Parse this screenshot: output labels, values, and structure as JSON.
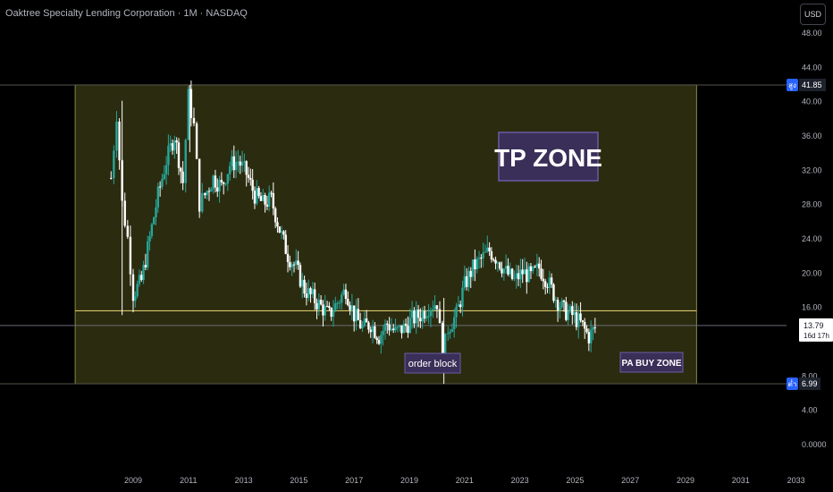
{
  "header": {
    "title": "Oaktree Specialty Lending Corporation · 1M · NASDAQ"
  },
  "currency_button": "USD",
  "price_axis": {
    "ticks": [
      "48.00",
      "44.00",
      "40.00",
      "36.00",
      "32.00",
      "28.00",
      "24.00",
      "20.00",
      "16.00",
      "12.00",
      "8.00",
      "4.00",
      "0.0000"
    ],
    "tick_values": [
      48,
      44,
      40,
      36,
      32,
      28,
      24,
      20,
      16,
      12,
      8,
      4,
      0
    ],
    "high_tag": {
      "prefix": "สูง",
      "value": "41.85"
    },
    "low_tag": {
      "prefix": "ต่ำ",
      "value": "6.99"
    },
    "last_price": "13.79",
    "countdown": "16d 17h"
  },
  "time_axis": {
    "years": [
      "2009",
      "2011",
      "2013",
      "2015",
      "2017",
      "2019",
      "2021",
      "2023",
      "2025",
      "2027",
      "2029",
      "2031",
      "2033"
    ]
  },
  "annotations": {
    "tp_zone": "TP ZONE",
    "order_block": "order block",
    "buy_zone": "PA BUY ZONE"
  },
  "colors": {
    "background": "#000000",
    "zone_fill": "#2b2b0f",
    "zone_border": "#8a8a46",
    "level_line": "#d8c46a",
    "label_bg": "#3a2f58",
    "label_border": "#6b5ba6",
    "candle_up": "#26a69a",
    "candle_down": "#ffffff",
    "axis_text": "#b2b5be"
  },
  "chart_data": {
    "type": "candlestick",
    "title": "Oaktree Specialty Lending Corporation · 1M · NASDAQ",
    "price_range": [
      0,
      50
    ],
    "x_range": [
      2007.6,
      2033.0
    ],
    "zone": {
      "from": 2006.9,
      "to": 2029.4,
      "low": 6.99,
      "high": 41.85
    },
    "level_line": 15.5,
    "last_price": 13.79,
    "closes_by_year": {
      "x": [
        2008.2,
        2008.4,
        2008.6,
        2008.8,
        2009.0,
        2009.3,
        2009.6,
        2009.9,
        2010.2,
        2010.5,
        2010.8,
        2011.0,
        2011.2,
        2011.4,
        2011.6,
        2011.9,
        2012.2,
        2012.5,
        2012.8,
        2013.1,
        2013.4,
        2013.7,
        2014.0,
        2014.3,
        2014.6,
        2014.9,
        2015.2,
        2015.5,
        2015.8,
        2016.1,
        2016.4,
        2016.7,
        2017.0,
        2017.3,
        2017.6,
        2017.9,
        2018.2,
        2018.5,
        2018.8,
        2019.1,
        2019.4,
        2019.7,
        2020.0,
        2020.2,
        2020.4,
        2020.7,
        2021.0,
        2021.3,
        2021.6,
        2021.9,
        2022.2,
        2022.5,
        2022.8,
        2023.1,
        2023.4,
        2023.7,
        2024.0,
        2024.3,
        2024.6,
        2024.9,
        2025.2,
        2025.5,
        2025.8
      ],
      "close": [
        31.0,
        38.5,
        28.0,
        24.0,
        17.5,
        19.0,
        24.0,
        29.0,
        33.0,
        36.0,
        30.5,
        40.5,
        37.0,
        28.0,
        29.0,
        31.0,
        30.0,
        32.5,
        33.0,
        31.5,
        29.0,
        28.0,
        28.5,
        25.0,
        22.0,
        20.5,
        18.0,
        17.0,
        16.0,
        15.0,
        16.5,
        18.0,
        15.0,
        13.5,
        14.0,
        12.5,
        14.0,
        13.0,
        13.5,
        14.5,
        15.0,
        16.0,
        16.5,
        10.0,
        13.5,
        15.0,
        18.5,
        20.5,
        21.5,
        22.5,
        21.5,
        20.0,
        19.0,
        20.0,
        19.5,
        20.5,
        19.0,
        17.0,
        15.5,
        15.0,
        14.0,
        12.5,
        13.8
      ]
    }
  }
}
